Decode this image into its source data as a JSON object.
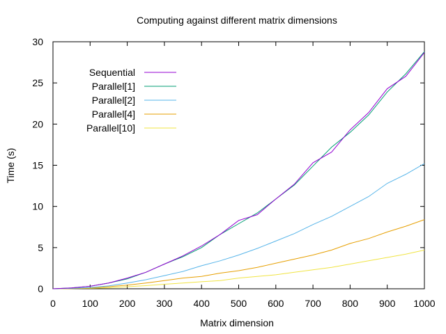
{
  "chart_data": {
    "type": "line",
    "title": "Computing against different matrix dimensions",
    "xlabel": "Matrix dimension",
    "ylabel": "Time (s)",
    "xlim": [
      0,
      1000
    ],
    "ylim": [
      0,
      30
    ],
    "xticks": [
      0,
      100,
      200,
      300,
      400,
      500,
      600,
      700,
      800,
      900,
      1000
    ],
    "yticks": [
      0,
      5,
      10,
      15,
      20,
      25,
      30
    ],
    "grid": false,
    "legend_position": "top-left",
    "x": [
      0,
      50,
      100,
      150,
      200,
      250,
      300,
      350,
      400,
      450,
      500,
      550,
      600,
      650,
      700,
      750,
      800,
      850,
      900,
      950,
      1000
    ],
    "series": [
      {
        "name": "Sequential",
        "color": "#9400d3",
        "values": [
          0.0,
          0.1,
          0.3,
          0.7,
          1.3,
          2.0,
          3.0,
          4.0,
          5.2,
          6.6,
          8.3,
          9.0,
          10.9,
          12.7,
          15.3,
          16.6,
          19.3,
          21.4,
          24.3,
          25.8,
          28.7
        ]
      },
      {
        "name": "Parallel[1]",
        "color": "#009e73",
        "values": [
          0.0,
          0.1,
          0.3,
          0.7,
          1.2,
          2.0,
          3.0,
          3.9,
          5.0,
          6.6,
          7.9,
          9.2,
          10.9,
          12.6,
          14.9,
          17.2,
          19.0,
          21.1,
          23.9,
          26.1,
          28.8
        ]
      },
      {
        "name": "Parallel[2]",
        "color": "#56b4e9",
        "values": [
          0.0,
          0.05,
          0.15,
          0.35,
          0.7,
          1.1,
          1.6,
          2.1,
          2.8,
          3.4,
          4.1,
          4.9,
          5.8,
          6.7,
          7.8,
          8.8,
          10.0,
          11.2,
          12.8,
          13.9,
          15.2
        ]
      },
      {
        "name": "Parallel[4]",
        "color": "#e69f00",
        "values": [
          0.0,
          0.03,
          0.1,
          0.25,
          0.45,
          0.7,
          1.0,
          1.3,
          1.5,
          1.9,
          2.2,
          2.6,
          3.1,
          3.6,
          4.1,
          4.7,
          5.5,
          6.1,
          6.9,
          7.6,
          8.4
        ]
      },
      {
        "name": "Parallel[10]",
        "color": "#f0e442",
        "values": [
          0.0,
          0.02,
          0.05,
          0.12,
          0.25,
          0.38,
          0.55,
          0.7,
          0.85,
          1.0,
          1.3,
          1.5,
          1.7,
          2.0,
          2.3,
          2.6,
          3.0,
          3.4,
          3.8,
          4.2,
          4.7
        ]
      }
    ]
  }
}
